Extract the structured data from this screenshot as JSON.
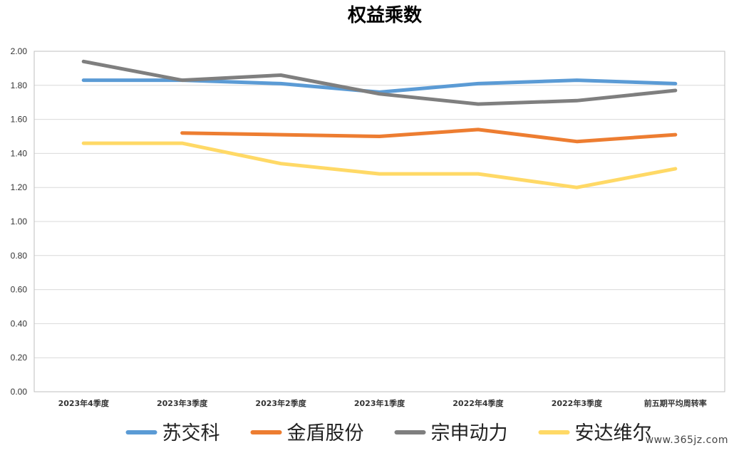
{
  "watermark": "www.365jz.com",
  "chart_data": {
    "type": "line",
    "title": "权益乘数",
    "xlabel": "",
    "ylabel": "",
    "categories": [
      "2023年4季度",
      "2023年3季度",
      "2023年2季度",
      "2023年1季度",
      "2022年4季度",
      "2022年3季度",
      "前五期平均周转率"
    ],
    "ylim": [
      0,
      2
    ],
    "yticks": [
      "0.00",
      "0.20",
      "0.40",
      "0.60",
      "0.80",
      "1.00",
      "1.20",
      "1.40",
      "1.60",
      "1.80",
      "2.00"
    ],
    "grid": true,
    "legend_position": "bottom",
    "series": [
      {
        "name": "苏交科",
        "color": "#5b9bd5",
        "values": [
          1.83,
          1.83,
          1.81,
          1.76,
          1.81,
          1.83,
          1.81
        ]
      },
      {
        "name": "金盾股份",
        "color": "#ed7d31",
        "values": [
          null,
          1.52,
          1.51,
          1.5,
          1.54,
          1.47,
          1.51
        ]
      },
      {
        "name": "宗申动力",
        "color": "#7f7f7f",
        "values": [
          1.94,
          1.83,
          1.86,
          1.75,
          1.69,
          1.71,
          1.77
        ]
      },
      {
        "name": "安达维尔",
        "color": "#ffd966",
        "values": [
          1.46,
          1.46,
          1.34,
          1.28,
          1.28,
          1.2,
          1.31
        ]
      }
    ]
  }
}
